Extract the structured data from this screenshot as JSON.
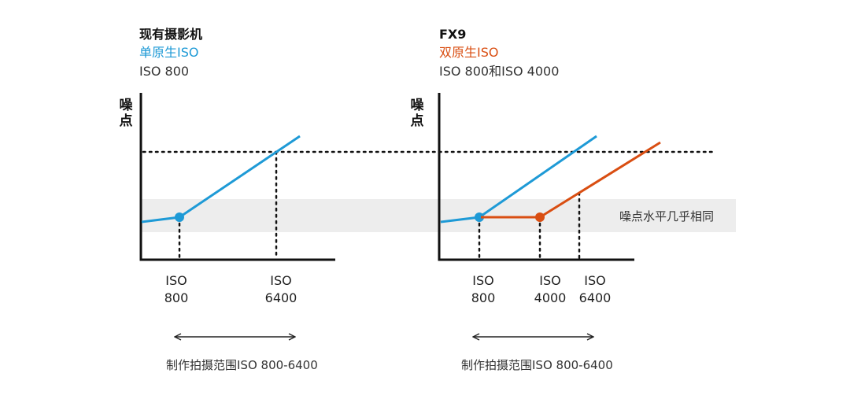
{
  "left": {
    "title": "现有摄影机",
    "subtitle": "单原生ISO",
    "detail": "ISO 800",
    "ylabel_chars": [
      "噪",
      "点"
    ],
    "ticks": [
      {
        "line1": "ISO",
        "line2": "800"
      },
      {
        "line1": "ISO",
        "line2": "6400"
      }
    ],
    "range_label": "制作拍摄范围ISO 800-6400"
  },
  "right": {
    "title": "FX9",
    "subtitle": "双原生ISO",
    "detail": "ISO 800和ISO 4000",
    "ylabel_chars": [
      "噪",
      "点"
    ],
    "ticks": [
      {
        "line1": "ISO",
        "line2": "800"
      },
      {
        "line1": "ISO",
        "line2": "4000"
      },
      {
        "line1": "ISO",
        "line2": "6400"
      }
    ],
    "range_label": "制作拍摄范围ISO 800-6400",
    "band_label": "噪点水平几乎相同"
  },
  "colors": {
    "blue": "#1e9ad6",
    "orange": "#d94e12",
    "axis": "#111111",
    "band": "#ededed"
  }
}
